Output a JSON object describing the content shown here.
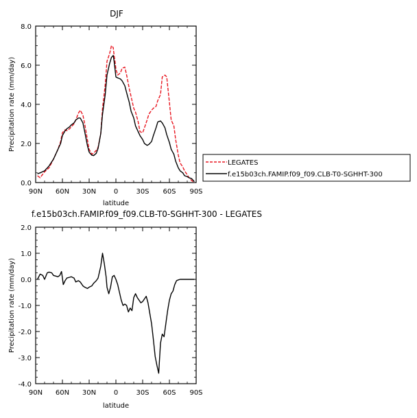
{
  "chart_data": [
    {
      "type": "line",
      "title": "DJF",
      "xlabel": "latitude",
      "ylabel": "Precipitation rate  (mm/day)",
      "xlim": [
        90,
        -90
      ],
      "ylim": [
        0,
        8
      ],
      "x_ticks": [
        90,
        60,
        30,
        0,
        -30,
        -60,
        -90
      ],
      "x_tick_labels": [
        "90N",
        "60N",
        "30N",
        "0",
        "30S",
        "60S",
        "90S"
      ],
      "y_ticks": [
        0,
        2,
        4,
        6,
        8
      ],
      "y_tick_labels": [
        "0.0",
        "2.0",
        "4.0",
        "6.0",
        "8.0"
      ],
      "legend_position": "right",
      "series": [
        {
          "name": "LEGATES",
          "color": "#e8141e",
          "dash": true,
          "x": [
            88,
            85,
            80,
            75,
            70,
            65,
            62,
            60,
            57,
            55,
            52,
            50,
            47,
            45,
            42,
            40,
            37,
            35,
            32,
            30,
            27,
            25,
            22,
            20,
            17,
            15,
            12,
            10,
            7,
            5,
            3,
            2,
            1,
            0,
            -2,
            -5,
            -7,
            -10,
            -12,
            -15,
            -17,
            -20,
            -22,
            -25,
            -27,
            -30,
            -32,
            -35,
            -37,
            -40,
            -42,
            -45,
            -47,
            -50,
            -52,
            -55,
            -57,
            -60,
            -62,
            -65,
            -67,
            -70,
            -72,
            -75,
            -77,
            -80,
            -82,
            -85,
            -88
          ],
          "y": [
            0.35,
            0.25,
            0.55,
            0.75,
            1.2,
            1.7,
            2.1,
            2.55,
            2.7,
            2.65,
            2.75,
            2.85,
            3.0,
            3.2,
            3.55,
            3.7,
            3.45,
            3.0,
            2.2,
            1.7,
            1.45,
            1.5,
            1.65,
            1.8,
            2.5,
            3.8,
            5.0,
            6.2,
            6.6,
            7.0,
            6.9,
            6.5,
            6.2,
            5.8,
            5.5,
            5.6,
            5.85,
            5.9,
            5.5,
            4.8,
            4.4,
            3.8,
            3.6,
            3.1,
            2.6,
            2.55,
            2.8,
            3.2,
            3.5,
            3.7,
            3.8,
            3.9,
            4.2,
            4.5,
            5.4,
            5.5,
            5.4,
            4.1,
            3.2,
            2.9,
            2.2,
            1.4,
            1.0,
            0.8,
            0.6,
            0.4,
            0.25,
            0.1,
            0.0
          ]
        },
        {
          "name": "f.e15b03ch.FAMIP.f09_f09.CLB-T0-SGHHT-300",
          "color": "#000000",
          "dash": false,
          "x": [
            88,
            85,
            80,
            75,
            70,
            65,
            62,
            60,
            57,
            55,
            52,
            50,
            47,
            45,
            42,
            40,
            37,
            35,
            32,
            30,
            27,
            25,
            22,
            20,
            17,
            15,
            12,
            10,
            7,
            5,
            3,
            2,
            1,
            0,
            -2,
            -5,
            -7,
            -10,
            -12,
            -15,
            -17,
            -20,
            -22,
            -25,
            -27,
            -30,
            -32,
            -35,
            -37,
            -40,
            -42,
            -45,
            -47,
            -50,
            -52,
            -55,
            -57,
            -60,
            -62,
            -65,
            -67,
            -70,
            -72,
            -75,
            -77,
            -80,
            -82,
            -85,
            -88
          ],
          "y": [
            0.45,
            0.5,
            0.6,
            0.85,
            1.2,
            1.7,
            2.0,
            2.4,
            2.65,
            2.75,
            2.85,
            2.95,
            3.05,
            3.2,
            3.3,
            3.3,
            3.05,
            2.6,
            1.9,
            1.55,
            1.4,
            1.38,
            1.5,
            1.75,
            2.5,
            3.5,
            4.5,
            5.5,
            6.1,
            6.4,
            6.5,
            6.2,
            5.8,
            5.4,
            5.35,
            5.3,
            5.2,
            4.95,
            4.6,
            4.1,
            3.65,
            3.3,
            2.9,
            2.6,
            2.4,
            2.2,
            2.0,
            1.9,
            1.95,
            2.1,
            2.4,
            2.8,
            3.1,
            3.15,
            3.05,
            2.8,
            2.45,
            2.05,
            1.7,
            1.45,
            1.1,
            0.75,
            0.6,
            0.5,
            0.35,
            0.3,
            0.25,
            0.2,
            0.05
          ]
        }
      ]
    },
    {
      "type": "line",
      "title": "f.e15b03ch.FAMIP.f09_f09.CLB-T0-SGHHT-300  -  LEGATES",
      "xlabel": "latitude",
      "ylabel": "Precipitation rate  (mm/day)",
      "xlim": [
        90,
        -90
      ],
      "ylim": [
        -4,
        2
      ],
      "x_ticks": [
        90,
        60,
        30,
        0,
        -30,
        -60,
        -90
      ],
      "x_tick_labels": [
        "90N",
        "60N",
        "30N",
        "0",
        "30S",
        "60S",
        "90S"
      ],
      "y_ticks": [
        -4,
        -3,
        -2,
        -1,
        0,
        1,
        2
      ],
      "y_tick_labels": [
        "-4.0",
        "-3.0",
        "-2.0",
        "-1.0",
        "0.0",
        "1.0",
        "2.0"
      ],
      "series": [
        {
          "name": "",
          "color": "#000000",
          "dash": false,
          "x": [
            88,
            85,
            82,
            80,
            77,
            75,
            72,
            70,
            67,
            65,
            63,
            61,
            59,
            57,
            55,
            52,
            50,
            47,
            45,
            42,
            40,
            37,
            35,
            32,
            30,
            27,
            25,
            22,
            20,
            17,
            15,
            13,
            11,
            10,
            8,
            6,
            4,
            2,
            0,
            -2,
            -4,
            -6,
            -8,
            -10,
            -12,
            -14,
            -16,
            -18,
            -20,
            -22,
            -24,
            -26,
            -28,
            -30,
            -32,
            -34,
            -36,
            -38,
            -40,
            -42,
            -44,
            -46,
            -48,
            -50,
            -52,
            -54,
            -56,
            -58,
            -60,
            -62,
            -64,
            -66,
            -68,
            -70,
            -72,
            -74,
            -76,
            -78,
            -80,
            -82,
            -84,
            -86,
            -88
          ],
          "y": [
            0.0,
            0.2,
            0.15,
            0.0,
            0.25,
            0.28,
            0.25,
            0.15,
            0.12,
            0.1,
            0.15,
            0.3,
            -0.2,
            -0.05,
            0.05,
            0.08,
            0.1,
            0.05,
            -0.1,
            -0.05,
            -0.1,
            -0.25,
            -0.3,
            -0.35,
            -0.3,
            -0.25,
            -0.15,
            -0.05,
            0.05,
            0.5,
            1.0,
            0.6,
            0.1,
            -0.3,
            -0.55,
            -0.3,
            0.1,
            0.15,
            0.0,
            -0.2,
            -0.5,
            -0.8,
            -1.0,
            -0.95,
            -1.0,
            -1.25,
            -1.1,
            -1.2,
            -0.7,
            -0.55,
            -0.7,
            -0.8,
            -0.9,
            -0.85,
            -0.75,
            -0.65,
            -0.9,
            -1.3,
            -1.7,
            -2.3,
            -2.95,
            -3.3,
            -3.6,
            -2.45,
            -2.1,
            -2.2,
            -1.7,
            -1.2,
            -0.8,
            -0.55,
            -0.45,
            -0.2,
            -0.05,
            -0.02,
            0.0,
            0.0,
            0.0,
            0.0,
            0.0,
            0.0,
            0.0,
            0.0,
            0.0
          ]
        }
      ]
    }
  ]
}
